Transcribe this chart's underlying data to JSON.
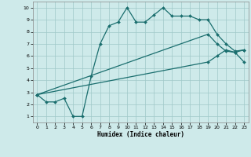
{
  "xlabel": "Humidex (Indice chaleur)",
  "background_color": "#ceeaea",
  "grid_color": "#a0c8c8",
  "line_color": "#1a6e6e",
  "xlim_min": -0.5,
  "xlim_max": 23.5,
  "ylim_min": 0.5,
  "ylim_max": 10.5,
  "xticks": [
    0,
    1,
    2,
    3,
    4,
    5,
    6,
    7,
    8,
    9,
    10,
    11,
    12,
    13,
    14,
    15,
    16,
    17,
    18,
    19,
    20,
    21,
    22,
    23
  ],
  "yticks": [
    1,
    2,
    3,
    4,
    5,
    6,
    7,
    8,
    9,
    10
  ],
  "line1_x": [
    0,
    1,
    2,
    3,
    4,
    5,
    6,
    7,
    8,
    9,
    10,
    11,
    12,
    13,
    14,
    15,
    16,
    17,
    18,
    19,
    20,
    21,
    22,
    23
  ],
  "line1_y": [
    2.8,
    2.2,
    2.2,
    2.5,
    1.0,
    1.0,
    4.3,
    7.0,
    8.5,
    8.8,
    10.0,
    8.8,
    8.8,
    9.4,
    10.0,
    9.3,
    9.3,
    9.3,
    9.0,
    9.0,
    7.8,
    7.0,
    6.4,
    6.5
  ],
  "line2_x": [
    0,
    19,
    20,
    21,
    22,
    23
  ],
  "line2_y": [
    2.8,
    7.8,
    7.0,
    6.4,
    6.3,
    6.5
  ],
  "line3_x": [
    0,
    19,
    20,
    21,
    22,
    23
  ],
  "line3_y": [
    2.8,
    5.5,
    6.0,
    6.5,
    6.3,
    5.5
  ]
}
